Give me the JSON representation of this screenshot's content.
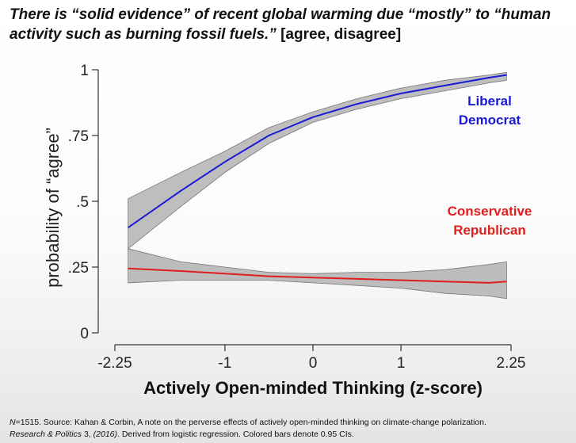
{
  "title": {
    "question": "There is “solid evidence” of recent global warming due “mostly” to “human activity such as burning fossil fuels.”",
    "options": "[agree, disagree]"
  },
  "footnote": {
    "n": "N",
    "line1": "=1515. Source: Kahan & Corbin, A note on the perverse effects of actively open-minded thinking on climate-change polarization.",
    "journal": "Research & Politics",
    "line2_a": " 3, ",
    "year": "(2016)",
    "line2_b": ".  Derived from logistic regression. Colored bars denote 0.95 CIs."
  },
  "chart_data": {
    "type": "line",
    "xlabel": "Actively Open-minded Thinking (z-score)",
    "ylabel": "probability of “agree”",
    "xlim": [
      -2.25,
      2.25
    ],
    "ylim": [
      0,
      1
    ],
    "xticks": [
      {
        "value": -2.25,
        "label": "-2.25"
      },
      {
        "value": -1,
        "label": "-1"
      },
      {
        "value": 0,
        "label": "0"
      },
      {
        "value": 1,
        "label": "1"
      },
      {
        "value": 2.25,
        "label": "2.25"
      }
    ],
    "yticks": [
      {
        "value": 0,
        "label": "0"
      },
      {
        "value": 0.25,
        "label": ".25"
      },
      {
        "value": 0.5,
        "label": ".5"
      },
      {
        "value": 0.75,
        "label": ".75"
      },
      {
        "value": 1,
        "label": "1"
      }
    ],
    "grid": false,
    "series": [
      {
        "name_lines": [
          "Liberal",
          "Democrat"
        ],
        "color": "#1a1ad6",
        "x": [
          -2.1,
          -1.5,
          -1.0,
          -0.5,
          0.0,
          0.5,
          1.0,
          1.5,
          2.0,
          2.2
        ],
        "y": [
          0.4,
          0.54,
          0.65,
          0.75,
          0.82,
          0.87,
          0.91,
          0.94,
          0.97,
          0.98
        ],
        "lower": [
          0.32,
          0.48,
          0.61,
          0.72,
          0.8,
          0.85,
          0.89,
          0.92,
          0.95,
          0.96
        ],
        "upper": [
          0.51,
          0.61,
          0.69,
          0.78,
          0.84,
          0.89,
          0.93,
          0.96,
          0.98,
          0.99
        ]
      },
      {
        "name_lines": [
          "Conservative",
          "Republican"
        ],
        "color": "#e01e1e",
        "x": [
          -2.1,
          -1.5,
          -1.0,
          -0.5,
          0.0,
          0.5,
          1.0,
          1.5,
          2.0,
          2.2
        ],
        "y": [
          0.245,
          0.235,
          0.225,
          0.215,
          0.21,
          0.205,
          0.2,
          0.195,
          0.19,
          0.195
        ],
        "lower": [
          0.19,
          0.2,
          0.2,
          0.2,
          0.19,
          0.18,
          0.17,
          0.15,
          0.14,
          0.13
        ],
        "upper": [
          0.32,
          0.27,
          0.25,
          0.23,
          0.225,
          0.23,
          0.23,
          0.24,
          0.26,
          0.27
        ]
      }
    ]
  }
}
